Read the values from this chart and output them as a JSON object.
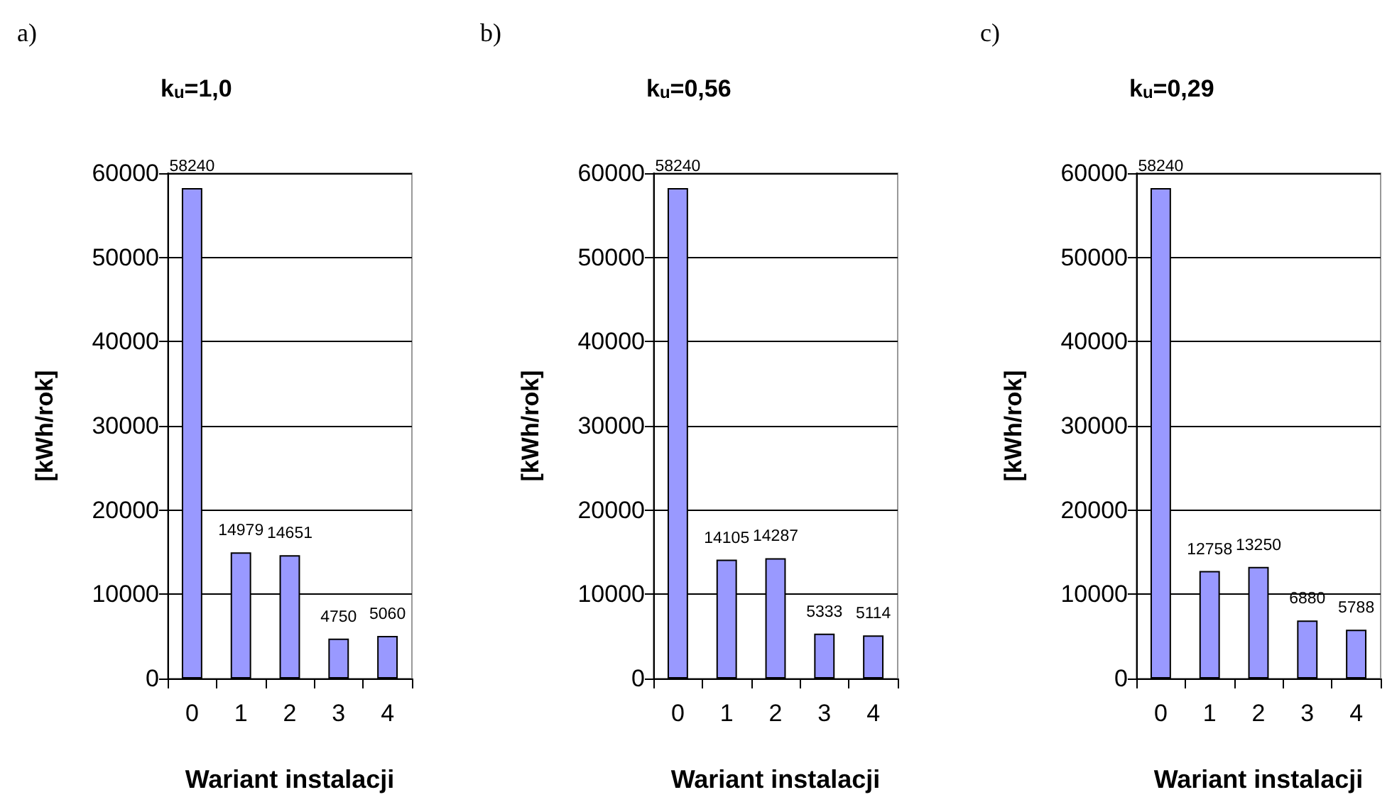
{
  "chart_data": [
    {
      "type": "bar",
      "title": "k$_{u}$=1,0",
      "annotations": [
        "a)"
      ],
      "categories": [
        "0",
        "1",
        "2",
        "3",
        "4"
      ],
      "values": [
        58240,
        14979,
        14651,
        4750,
        5060
      ],
      "color": "#9999ff",
      "xlabel": "Wariant instalacji",
      "ylabel": "[kWh/rok]",
      "ylim": [
        0,
        60000
      ],
      "yticks": [
        0,
        10000,
        20000,
        30000,
        40000,
        50000,
        60000
      ],
      "grid": "y",
      "data_labels": true
    },
    {
      "type": "bar",
      "title": "k$_{u}$=0,56",
      "annotations": [
        "b)"
      ],
      "categories": [
        "0",
        "1",
        "2",
        "3",
        "4"
      ],
      "values": [
        58240,
        14105,
        14287,
        5333,
        5114
      ],
      "color": "#9999ff",
      "xlabel": "Wariant instalacji",
      "ylabel": "[kWh/rok]",
      "ylim": [
        0,
        60000
      ],
      "yticks": [
        0,
        10000,
        20000,
        30000,
        40000,
        50000,
        60000
      ],
      "grid": "y",
      "data_labels": true
    },
    {
      "type": "bar",
      "title": "k$_{u}$=0,29",
      "annotations": [
        "c)"
      ],
      "categories": [
        "0",
        "1",
        "2",
        "3",
        "4"
      ],
      "values": [
        58240,
        12758,
        13250,
        6880,
        5788
      ],
      "color": "#9999ff",
      "xlabel": "Wariant instalacji",
      "ylabel": "[kWh/rok]",
      "ylim": [
        0,
        60000
      ],
      "yticks": [
        0,
        10000,
        20000,
        30000,
        40000,
        50000,
        60000
      ],
      "grid": "y",
      "data_labels": true
    }
  ]
}
